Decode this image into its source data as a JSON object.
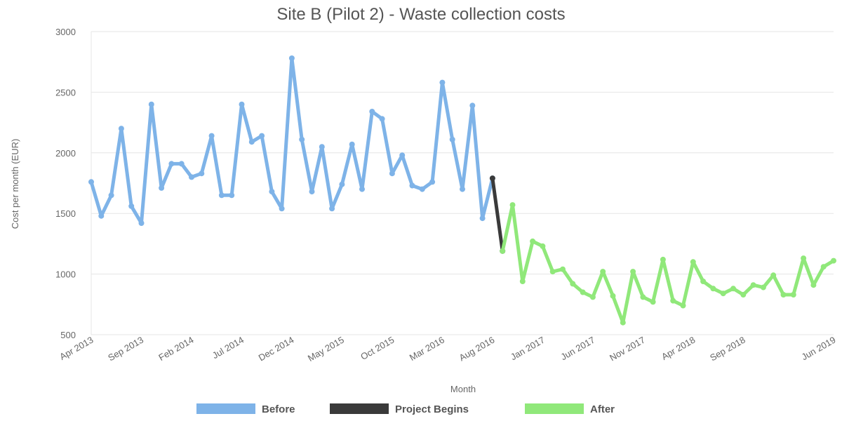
{
  "chart_data": {
    "type": "line",
    "title": "Site B (Pilot 2) - Waste collection costs",
    "xlabel": "Month",
    "ylabel": "Cost per month (EUR)",
    "ylim": [
      500,
      3000
    ],
    "yticks": [
      500,
      1000,
      1500,
      2000,
      2500,
      3000
    ],
    "grid": true,
    "legend_position": "bottom",
    "xtick_labels": [
      {
        "index": 0,
        "label": "Apr 2013"
      },
      {
        "index": 5,
        "label": "Sep 2013"
      },
      {
        "index": 10,
        "label": "Feb 2014"
      },
      {
        "index": 15,
        "label": "Jul 2014"
      },
      {
        "index": 20,
        "label": "Dec 2014"
      },
      {
        "index": 25,
        "label": "May 2015"
      },
      {
        "index": 30,
        "label": "Oct 2015"
      },
      {
        "index": 35,
        "label": "Mar 2016"
      },
      {
        "index": 40,
        "label": "Aug 2016"
      },
      {
        "index": 45,
        "label": "Jan 2017"
      },
      {
        "index": 50,
        "label": "Jun 2017"
      },
      {
        "index": 55,
        "label": "Nov 2017"
      },
      {
        "index": 60,
        "label": "Apr 2018"
      },
      {
        "index": 65,
        "label": "Sep 2018"
      },
      {
        "index": 74,
        "label": "Jun 2019"
      }
    ],
    "series": [
      {
        "name": "Before",
        "color": "#7eb3e8",
        "start_index": 0,
        "values": [
          1760,
          1480,
          1650,
          2200,
          1560,
          1420,
          2400,
          1710,
          1910,
          1910,
          1800,
          1830,
          2140,
          1650,
          1650,
          2400,
          2090,
          2140,
          1680,
          1540,
          2780,
          2110,
          1680,
          2050,
          1540,
          1740,
          2070,
          1700,
          2340,
          2280,
          1830,
          1980,
          1730,
          1700,
          1760,
          2580,
          2110,
          1700,
          2390,
          1460,
          1790
        ]
      },
      {
        "name": "Project Begins",
        "color": "#3a3a3a",
        "start_index": 40,
        "values": [
          1790,
          1190
        ]
      },
      {
        "name": "After",
        "color": "#90e87a",
        "start_index": 41,
        "values": [
          1190,
          1570,
          940,
          1270,
          1230,
          1020,
          1040,
          920,
          850,
          810,
          1020,
          820,
          600,
          1020,
          810,
          770,
          1120,
          780,
          740,
          1100,
          940,
          880,
          840,
          880,
          830,
          910,
          890,
          990,
          830,
          830,
          1130,
          910,
          1060,
          1110
        ]
      }
    ]
  }
}
